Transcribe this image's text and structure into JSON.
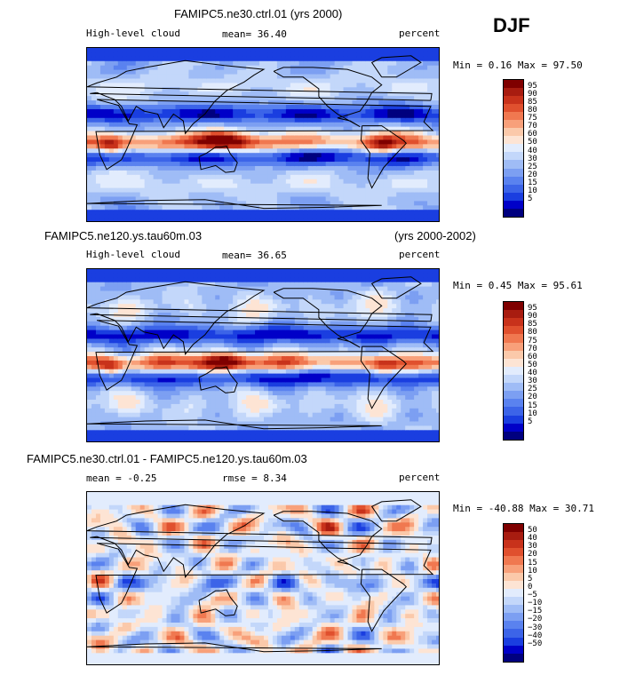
{
  "season": "DJF",
  "palettes": {
    "abs": [
      "#00007f",
      "#0000c8",
      "#1a3ee0",
      "#3c64e8",
      "#5a82ef",
      "#7c9ff2",
      "#9fbcf6",
      "#c3d7fa",
      "#e2ecfd",
      "#fde4d4",
      "#fbc9aa",
      "#f8a07a",
      "#f07850",
      "#e0502e",
      "#c8321b",
      "#a81c10",
      "#7f0000"
    ],
    "diff": [
      "#00007f",
      "#0000c8",
      "#1a3ee0",
      "#3c64e8",
      "#5a82ef",
      "#7c9ff2",
      "#9fbcf6",
      "#c3d7fa",
      "#e2ecfd",
      "#fde4d4",
      "#fbc9aa",
      "#f8a07a",
      "#f07850",
      "#e0502e",
      "#c8321b",
      "#a81c10",
      "#7f0000"
    ]
  },
  "panels": [
    {
      "id": "p1",
      "title": "FAMIPC5.ne30.ctrl.01 (yrs 2000)",
      "title_right": "",
      "variable": "High-level cloud",
      "stat1": "mean=  36.40",
      "stat2": "",
      "units": "percent",
      "minmax": "Min =   0.16 Max =  97.50",
      "legend_labels": [
        "95",
        "90",
        "85",
        "80",
        "75",
        "70",
        "60",
        "50",
        "40",
        "30",
        "25",
        "20",
        "15",
        "10",
        "5"
      ],
      "palette": "abs",
      "seed": 11
    },
    {
      "id": "p2",
      "title": "FAMIPC5.ne120.ys.tau60m.03",
      "title_right": "(yrs 2000-2002)",
      "variable": "High-level cloud",
      "stat1": "mean=  36.65",
      "stat2": "",
      "units": "percent",
      "minmax": "Min =   0.45 Max =  95.61",
      "legend_labels": [
        "95",
        "90",
        "85",
        "80",
        "75",
        "70",
        "60",
        "50",
        "40",
        "30",
        "25",
        "20",
        "15",
        "10",
        "5"
      ],
      "palette": "abs",
      "seed": 29
    },
    {
      "id": "p3",
      "title": "FAMIPC5.ne30.ctrl.01 - FAMIPC5.ne120.ys.tau60m.03",
      "title_right": "",
      "variable": "",
      "stat1": "mean =  -0.25",
      "stat2": "rmse =   8.34",
      "units": "percent",
      "minmax": "Min = -40.88 Max =  30.71",
      "legend_labels": [
        "50",
        "40",
        "30",
        "20",
        "15",
        "10",
        "5",
        "0",
        "−5",
        "−10",
        "−15",
        "−20",
        "−30",
        "−40",
        "−50"
      ],
      "palette": "diff",
      "seed": 47
    }
  ],
  "chart_data": {
    "type": "heatmap",
    "title": "High-level cloud DJF",
    "units": "percent",
    "xlim": [
      0,
      360
    ],
    "ylim": [
      -90,
      90
    ],
    "panels": [
      {
        "name": "FAMIPC5.ne30.ctrl.01 (yrs 2000)",
        "mean": 36.4,
        "min": 0.16,
        "max": 97.5,
        "levels": [
          5,
          10,
          15,
          20,
          25,
          30,
          40,
          50,
          60,
          70,
          75,
          80,
          85,
          90,
          95
        ]
      },
      {
        "name": "FAMIPC5.ne120.ys.tau60m.03 (yrs 2000-2002)",
        "mean": 36.65,
        "min": 0.45,
        "max": 95.61,
        "levels": [
          5,
          10,
          15,
          20,
          25,
          30,
          40,
          50,
          60,
          70,
          75,
          80,
          85,
          90,
          95
        ]
      },
      {
        "name": "FAMIPC5.ne30.ctrl.01 - FAMIPC5.ne120.ys.tau60m.03",
        "mean": -0.25,
        "rmse": 8.34,
        "min": -40.88,
        "max": 30.71,
        "levels": [
          -50,
          -40,
          -30,
          -20,
          -15,
          -10,
          -5,
          0,
          5,
          10,
          15,
          20,
          30,
          40,
          50
        ]
      }
    ]
  }
}
